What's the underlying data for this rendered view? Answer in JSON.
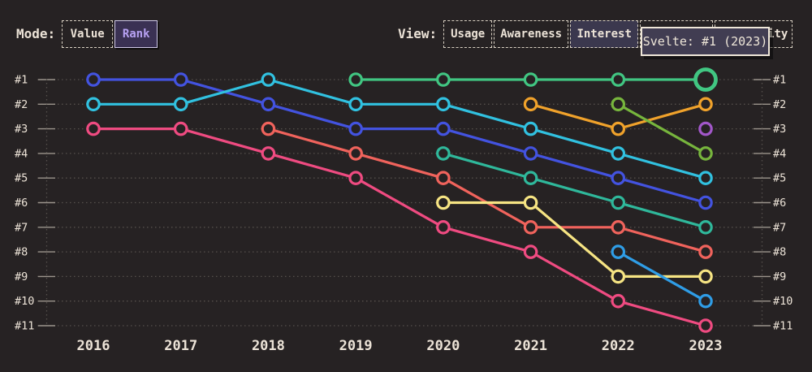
{
  "app": {
    "background": "#262223",
    "text_color": "#ece3d7",
    "accent_purple": "#b7a1f2",
    "grid_color": "#55504c",
    "tick_color": "#9b948c"
  },
  "controls": {
    "mode": {
      "label": "Mode:",
      "options": [
        {
          "label": "Value",
          "selected": false
        },
        {
          "label": "Rank",
          "selected": true
        }
      ]
    },
    "view": {
      "label": "View:",
      "options": [
        {
          "label": "Usage",
          "selected": false
        },
        {
          "label": "Awareness",
          "selected": false
        },
        {
          "label": "Interest",
          "selected": true
        },
        {
          "label": "Retention",
          "selected": false
        },
        {
          "label": "Positivity",
          "selected": false
        }
      ]
    }
  },
  "tooltip": {
    "text": "Svelte: #1 (2023)"
  },
  "chart_data": {
    "type": "line",
    "subtype": "bump-rank-chart",
    "x": [
      2016,
      2017,
      2018,
      2019,
      2020,
      2021,
      2022,
      2023
    ],
    "yticks": [
      "#1",
      "#2",
      "#3",
      "#4",
      "#5",
      "#6",
      "#7",
      "#8",
      "#9",
      "#10",
      "#11"
    ],
    "ylim": [
      1,
      11
    ],
    "grid": "dotted-horizontal",
    "legend": "none",
    "series": [
      {
        "name": "blue",
        "color": "#4353e0",
        "points": [
          [
            2016,
            1
          ],
          [
            2017,
            1
          ],
          [
            2018,
            2
          ],
          [
            2019,
            3
          ],
          [
            2020,
            3
          ],
          [
            2021,
            4
          ],
          [
            2022,
            5
          ],
          [
            2023,
            6
          ]
        ]
      },
      {
        "name": "cyan",
        "color": "#31c1e0",
        "points": [
          [
            2016,
            2
          ],
          [
            2017,
            2
          ],
          [
            2018,
            1
          ],
          [
            2019,
            2
          ],
          [
            2020,
            2
          ],
          [
            2021,
            3
          ],
          [
            2022,
            4
          ],
          [
            2023,
            5
          ]
        ]
      },
      {
        "name": "pink",
        "color": "#ef4b81",
        "points": [
          [
            2016,
            3
          ],
          [
            2017,
            3
          ],
          [
            2018,
            4
          ],
          [
            2019,
            5
          ],
          [
            2020,
            7
          ],
          [
            2021,
            8
          ],
          [
            2022,
            10
          ],
          [
            2023,
            11
          ]
        ]
      },
      {
        "name": "salmon",
        "color": "#f0635c",
        "points": [
          [
            2018,
            3
          ],
          [
            2019,
            4
          ],
          [
            2020,
            5
          ],
          [
            2021,
            7
          ],
          [
            2022,
            7
          ],
          [
            2023,
            8
          ]
        ]
      },
      {
        "name": "teal",
        "color": "#2fb89b",
        "points": [
          [
            2020,
            4
          ],
          [
            2021,
            5
          ],
          [
            2022,
            6
          ],
          [
            2023,
            7
          ]
        ]
      },
      {
        "name": "yellow",
        "color": "#f6e483",
        "points": [
          [
            2020,
            6
          ],
          [
            2021,
            6
          ],
          [
            2022,
            9
          ],
          [
            2023,
            9
          ]
        ]
      },
      {
        "name": "orange",
        "color": "#f0a22b",
        "points": [
          [
            2021,
            2
          ],
          [
            2022,
            3
          ],
          [
            2023,
            2
          ]
        ]
      },
      {
        "name": "lime",
        "color": "#77b53d",
        "points": [
          [
            2022,
            2
          ],
          [
            2023,
            4
          ]
        ]
      },
      {
        "name": "light-blue",
        "color": "#2f9de6",
        "points": [
          [
            2022,
            8
          ],
          [
            2023,
            10
          ]
        ]
      },
      {
        "name": "purple",
        "color": "#a257c9",
        "points": [
          [
            2023,
            3
          ]
        ]
      },
      {
        "name": "Svelte",
        "color": "#41c682",
        "points": [
          [
            2019,
            1
          ],
          [
            2020,
            1
          ],
          [
            2021,
            1
          ],
          [
            2022,
            1
          ],
          [
            2023,
            1
          ]
        ]
      }
    ],
    "highlight": {
      "series": "Svelte",
      "year": 2023,
      "rank": 1
    }
  }
}
